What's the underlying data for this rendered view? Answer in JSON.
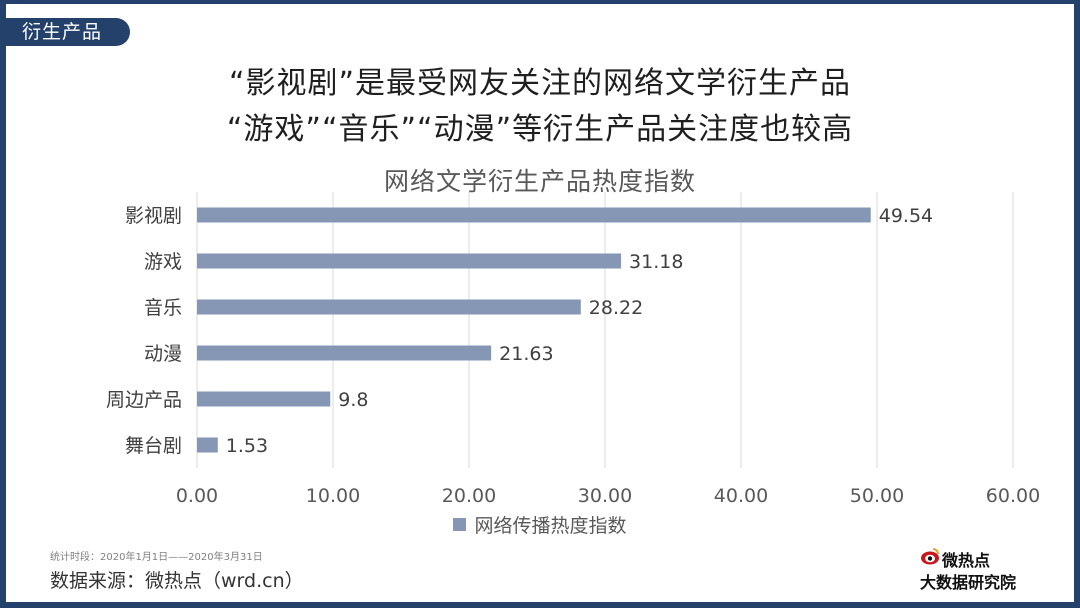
{
  "section_tag": "衍生产品",
  "headline": {
    "line1": "“影视剧”是最受网友关注的网络文学衍生产品",
    "line2": "“游戏”“音乐”“动漫”等衍生产品关注度也较高"
  },
  "colors": {
    "frame": "#23416b",
    "bar": "#8597b5",
    "grid": "#d9d9d9"
  },
  "chart_data": {
    "type": "bar",
    "orientation": "horizontal",
    "title": "网络文学衍生产品热度指数",
    "categories": [
      "影视剧",
      "游戏",
      "音乐",
      "动漫",
      "周边产品",
      "舞台剧"
    ],
    "series": [
      {
        "name": "网络传播热度指数",
        "values": [
          49.54,
          31.18,
          28.22,
          21.63,
          9.8,
          1.53
        ],
        "labels": [
          "49.54",
          "31.18",
          "28.22",
          "21.63",
          "9.8",
          "1.53"
        ]
      }
    ],
    "xlim": [
      0,
      60
    ],
    "xticks": [
      "0.00",
      "10.00",
      "20.00",
      "30.00",
      "40.00",
      "50.00",
      "60.00"
    ],
    "grid": true,
    "legend_position": "bottom"
  },
  "footer": {
    "period": "统计时段：2020年1月1日——2020年3月31日",
    "source": "数据来源：微热点（wrd.cn）"
  },
  "brand": {
    "name": "微热点",
    "subtitle": "大数据研究院",
    "icon": "weibo-style-eye-icon"
  }
}
